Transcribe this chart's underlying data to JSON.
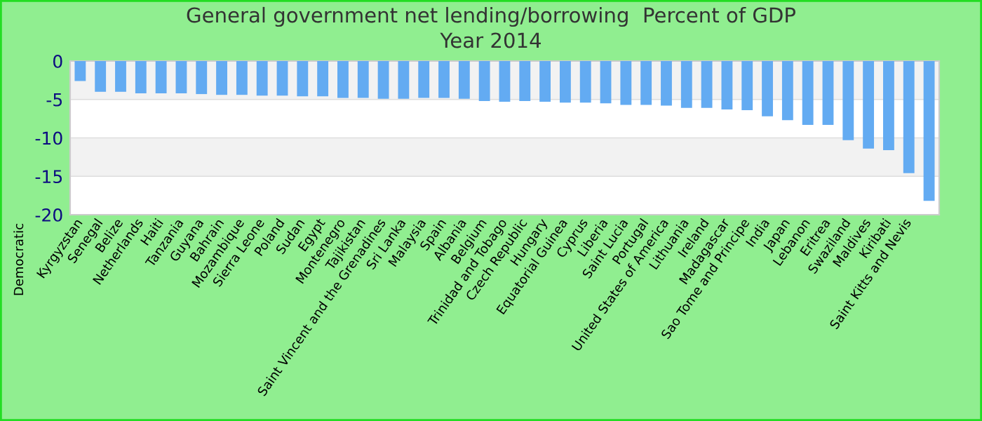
{
  "chart_data": {
    "type": "bar",
    "title": "General government net lending/borrowing  Percent of GDP",
    "subtitle": "Year 2014",
    "categories": [
      "Kyrgyzstan",
      "Senegal",
      "Belize",
      "Netherlands",
      "Haiti",
      "Tanzania",
      "Guyana",
      "Bahrain",
      "Mozambique",
      "Sierra Leone",
      "Poland",
      "Sudan",
      "Egypt",
      "Montenegro",
      "Tajikistan",
      "Saint Vincent and the Grenadines",
      "Sri Lanka",
      "Malaysia",
      "Spain",
      "Albania",
      "Belgium",
      "Trinidad and Tobago",
      "Czech Republic",
      "Hungary",
      "Equatorial Guinea",
      "Cyprus",
      "Liberia",
      "Saint Lucia",
      "Portugal",
      "United States of America",
      "Lithuania",
      "Ireland",
      "Madagascar",
      "Sao Tome and Principe",
      "India",
      "Japan",
      "Lebanon",
      "Eritrea",
      "Swaziland",
      "Maldives",
      "Kiribati",
      "Saint Kitts and Nevis",
      null
    ],
    "values": [
      -2.6,
      -4.0,
      -4.0,
      -4.2,
      -4.2,
      -4.2,
      -4.3,
      -4.4,
      -4.4,
      -4.5,
      -4.5,
      -4.6,
      -4.6,
      -4.8,
      -4.8,
      -4.9,
      -4.9,
      -4.8,
      -4.8,
      -4.9,
      -5.2,
      -5.3,
      -5.2,
      -5.3,
      -5.4,
      -5.4,
      -5.5,
      -5.7,
      -5.7,
      -5.8,
      -6.1,
      -6.1,
      -6.3,
      -6.4,
      -7.2,
      -7.7,
      -8.3,
      -8.3,
      -10.3,
      -11.4,
      -11.6,
      -14.6,
      -18.2
    ],
    "color": "#63abf2",
    "ylim": [
      -20,
      0
    ],
    "yticks": [
      0,
      -5,
      -10,
      -15,
      -20
    ],
    "grid": "y",
    "annotations": [
      "Democratic"
    ]
  }
}
